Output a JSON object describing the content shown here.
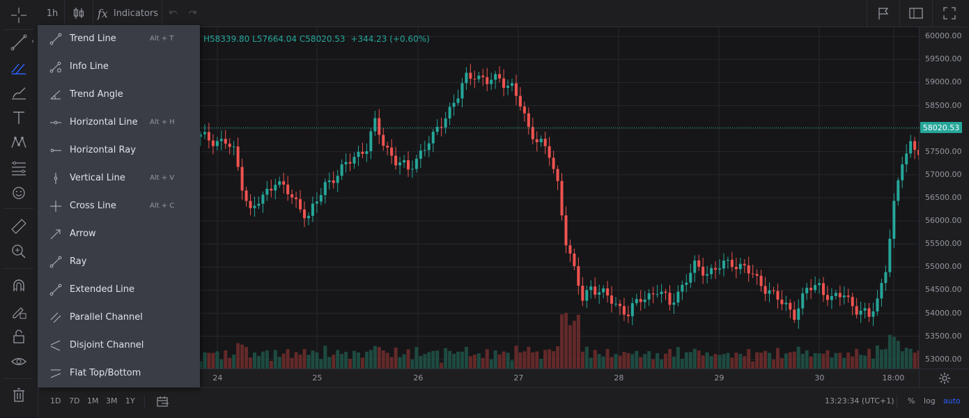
{
  "topbar": {
    "interval": "1h",
    "indicators_label": "Indicators"
  },
  "ohlc": {
    "high_label": "H",
    "high": "58339.80",
    "low_label": "L",
    "low": "57664.04",
    "close_label": "C",
    "close": "58020.53",
    "change": "+344.23 (+0.60%)"
  },
  "drawing_menu": [
    {
      "label": "Trend Line",
      "hotkey": "Alt + T",
      "icon": "trend-line-icon"
    },
    {
      "label": "Info Line",
      "hotkey": "",
      "icon": "info-line-icon"
    },
    {
      "label": "Trend Angle",
      "hotkey": "",
      "icon": "trend-angle-icon"
    },
    {
      "label": "Horizontal Line",
      "hotkey": "Alt + H",
      "icon": "horizontal-line-icon"
    },
    {
      "label": "Horizontal Ray",
      "hotkey": "",
      "icon": "horizontal-ray-icon"
    },
    {
      "label": "Vertical Line",
      "hotkey": "Alt + V",
      "icon": "vertical-line-icon"
    },
    {
      "label": "Cross Line",
      "hotkey": "Alt + C",
      "icon": "cross-line-icon"
    },
    {
      "label": "Arrow",
      "hotkey": "",
      "icon": "arrow-icon"
    },
    {
      "label": "Ray",
      "hotkey": "",
      "icon": "ray-icon"
    },
    {
      "label": "Extended Line",
      "hotkey": "",
      "icon": "extended-line-icon"
    },
    {
      "label": "Parallel Channel",
      "hotkey": "",
      "icon": "parallel-channel-icon"
    },
    {
      "label": "Disjoint Channel",
      "hotkey": "",
      "icon": "disjoint-channel-icon"
    },
    {
      "label": "Flat Top/Bottom",
      "hotkey": "",
      "icon": "flat-top-bottom-icon"
    }
  ],
  "price_axis": {
    "labels": [
      "60000.00",
      "59500.00",
      "59000.00",
      "58500.00",
      "58000.00",
      "57500.00",
      "57000.00",
      "56500.00",
      "56000.00",
      "55500.00",
      "55000.00",
      "54500.00",
      "54000.00",
      "53500.00",
      "53000.00"
    ],
    "last_price": "58020.53"
  },
  "time_axis": {
    "labels": [
      "24",
      "25",
      "26",
      "27",
      "28",
      "29",
      "30",
      "18:00"
    ]
  },
  "bottombar": {
    "ranges": [
      "1D",
      "7D",
      "1M",
      "3M",
      "1Y"
    ],
    "clock": "13:23:34 (UTC+1)",
    "percent": "%",
    "log": "log",
    "auto": "auto"
  },
  "colors": {
    "up": "#26a69a",
    "down": "#ef5350",
    "accent": "#2962ff",
    "last_price_bg": "#26a69a"
  },
  "chart_data": {
    "type": "candlestick",
    "ylim": [
      52800,
      60200
    ],
    "x_labels": [
      "24",
      "25",
      "26",
      "27",
      "28",
      "29",
      "30",
      "18:00"
    ],
    "last_price": 58020.53,
    "anchors": [
      [
        0,
        57820
      ],
      [
        6,
        57700
      ],
      [
        8,
        57500
      ],
      [
        10,
        56800
      ],
      [
        12,
        56200
      ],
      [
        15,
        56500
      ],
      [
        18,
        56900
      ],
      [
        22,
        56500
      ],
      [
        26,
        56100
      ],
      [
        28,
        56400
      ],
      [
        30,
        56800
      ],
      [
        34,
        57100
      ],
      [
        37,
        57400
      ],
      [
        40,
        57600
      ],
      [
        42,
        58100
      ],
      [
        44,
        57700
      ],
      [
        47,
        57300
      ],
      [
        50,
        57100
      ],
      [
        53,
        57500
      ],
      [
        56,
        57800
      ],
      [
        59,
        58300
      ],
      [
        62,
        58700
      ],
      [
        64,
        59100
      ],
      [
        66,
        59200
      ],
      [
        69,
        59000
      ],
      [
        72,
        59100
      ],
      [
        75,
        58900
      ],
      [
        77,
        58500
      ],
      [
        79,
        58000
      ],
      [
        82,
        57700
      ],
      [
        84,
        57400
      ],
      [
        86,
        56800
      ],
      [
        88,
        55600
      ],
      [
        90,
        54900
      ],
      [
        92,
        54300
      ],
      [
        94,
        54600
      ],
      [
        97,
        54400
      ],
      [
        100,
        54200
      ],
      [
        103,
        54000
      ],
      [
        106,
        54300
      ],
      [
        110,
        54500
      ],
      [
        113,
        54200
      ],
      [
        116,
        54600
      ],
      [
        119,
        55000
      ],
      [
        122,
        54900
      ],
      [
        125,
        55000
      ],
      [
        128,
        55100
      ],
      [
        131,
        55000
      ],
      [
        134,
        54700
      ],
      [
        137,
        54500
      ],
      [
        140,
        54200
      ],
      [
        143,
        54000
      ],
      [
        146,
        54500
      ],
      [
        149,
        54600
      ],
      [
        152,
        54300
      ],
      [
        155,
        54400
      ],
      [
        158,
        54100
      ],
      [
        161,
        53900
      ],
      [
        163,
        54300
      ],
      [
        165,
        55000
      ],
      [
        167,
        56300
      ],
      [
        169,
        57300
      ],
      [
        171,
        57700
      ],
      [
        173,
        57500
      ],
      [
        176,
        57400
      ],
      [
        179,
        57200
      ],
      [
        182,
        57100
      ],
      [
        185,
        56900
      ],
      [
        188,
        57100
      ],
      [
        191,
        57600
      ],
      [
        193,
        58700
      ],
      [
        195,
        58500
      ],
      [
        197,
        58200
      ],
      [
        199,
        57700
      ],
      [
        202,
        57300
      ],
      [
        205,
        56500
      ],
      [
        207,
        56800
      ],
      [
        209,
        57200
      ],
      [
        211,
        57800
      ],
      [
        212,
        58020
      ]
    ]
  }
}
